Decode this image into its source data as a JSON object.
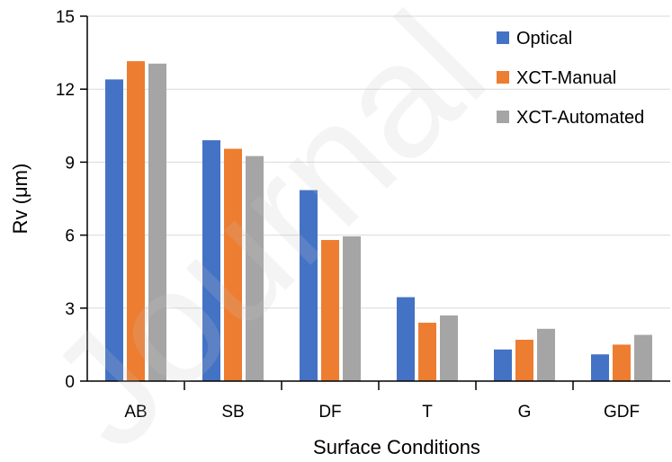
{
  "chart_data": {
    "type": "bar",
    "categories": [
      "AB",
      "SB",
      "DF",
      "T",
      "G",
      "GDF"
    ],
    "series": [
      {
        "name": "Optical",
        "color": "#4472C4",
        "values": [
          12.4,
          9.9,
          7.85,
          3.45,
          1.3,
          1.1
        ]
      },
      {
        "name": "XCT-Manual",
        "color": "#ED7D31",
        "values": [
          13.15,
          9.55,
          5.8,
          2.4,
          1.7,
          1.5
        ]
      },
      {
        "name": "XCT-Automated",
        "color": "#A5A5A5",
        "values": [
          13.05,
          9.25,
          5.95,
          2.7,
          2.15,
          1.9
        ]
      }
    ],
    "xlabel": "Surface Conditions",
    "ylabel": "Rv (μm)",
    "ylim": [
      0,
      15
    ],
    "yticks": [
      "0",
      "3",
      "6",
      "9",
      "12",
      "15"
    ],
    "grid": true,
    "legend_position": "top-right",
    "watermark": "Journal"
  }
}
